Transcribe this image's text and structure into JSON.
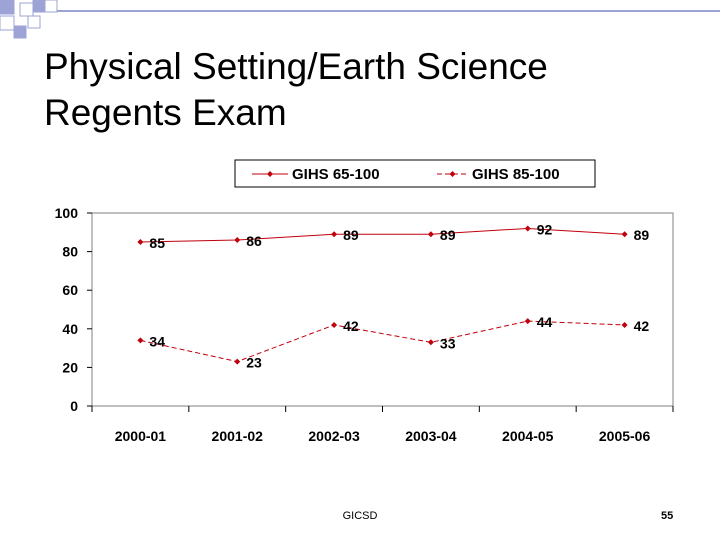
{
  "slide": {
    "title_lines": [
      "Physical Setting/Earth Science",
      "Regents Exam"
    ],
    "footer": "GICSD",
    "page_number": "55"
  },
  "colors": {
    "series": "#c0000c",
    "deco": "#9ea3d6",
    "text": "#000000"
  },
  "chart_data": {
    "type": "line",
    "categories": [
      "2000-01",
      "2001-02",
      "2002-03",
      "2003-04",
      "2004-05",
      "2005-06"
    ],
    "series": [
      {
        "name": "GIHS 65-100",
        "values": [
          85,
          86,
          89,
          89,
          92,
          89
        ],
        "line_style": "solid",
        "labels": [
          "85",
          "86",
          "89",
          "89",
          "92",
          "89"
        ]
      },
      {
        "name": "GIHS 85-100",
        "values": [
          34,
          23,
          42,
          33,
          44,
          42
        ],
        "line_style": "dashed",
        "labels": [
          "34",
          "23",
          "42",
          "33",
          "44",
          "42"
        ]
      }
    ],
    "ylim": [
      0,
      100
    ],
    "yticks": [
      0,
      20,
      40,
      60,
      80,
      100
    ],
    "ytick_labels": [
      "0",
      "20",
      "40",
      "60",
      "80",
      "100"
    ],
    "grid": false,
    "legend_position": "top"
  }
}
